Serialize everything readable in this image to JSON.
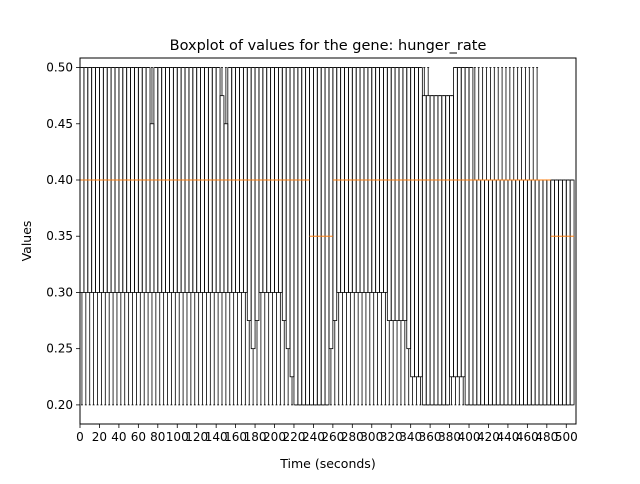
{
  "chart_data": {
    "type": "boxplot",
    "title": "Boxplot of values for the gene: hunger_rate",
    "xlabel": "Time (seconds)",
    "ylabel": "Values",
    "ylim": [
      0.183,
      0.5085
    ],
    "yticks": [
      0.2,
      0.25,
      0.3,
      0.35,
      0.4,
      0.45,
      0.5
    ],
    "ytick_labels": [
      "0.20",
      "0.25",
      "0.30",
      "0.35",
      "0.40",
      "0.45",
      "0.50"
    ],
    "x_range": [
      0,
      510
    ],
    "x_tick_step": 20,
    "box_step": 4,
    "grid": false,
    "colors": {
      "box": "#000000",
      "median": "#ff7f0e",
      "background": "#ffffff"
    },
    "segments": [
      {
        "from": 2,
        "to": 70,
        "min": 0.2,
        "q1": 0.3,
        "median": 0.4,
        "q3": 0.5,
        "max": 0.5
      },
      {
        "from": 74,
        "to": 74,
        "min": 0.2,
        "q1": 0.3,
        "median": 0.4,
        "q3": 0.45,
        "max": 0.5
      },
      {
        "from": 78,
        "to": 142,
        "min": 0.2,
        "q1": 0.3,
        "median": 0.4,
        "q3": 0.5,
        "max": 0.5
      },
      {
        "from": 146,
        "to": 146,
        "min": 0.2,
        "q1": 0.3,
        "median": 0.4,
        "q3": 0.475,
        "max": 0.5
      },
      {
        "from": 150,
        "to": 150,
        "min": 0.2,
        "q1": 0.3,
        "median": 0.4,
        "q3": 0.45,
        "max": 0.5
      },
      {
        "from": 154,
        "to": 170,
        "min": 0.2,
        "q1": 0.3,
        "median": 0.4,
        "q3": 0.5,
        "max": 0.5
      },
      {
        "from": 174,
        "to": 174,
        "min": 0.2,
        "q1": 0.275,
        "median": 0.4,
        "q3": 0.5,
        "max": 0.5
      },
      {
        "from": 178,
        "to": 178,
        "min": 0.2,
        "q1": 0.25,
        "median": 0.4,
        "q3": 0.5,
        "max": 0.5
      },
      {
        "from": 182,
        "to": 182,
        "min": 0.2,
        "q1": 0.275,
        "median": 0.4,
        "q3": 0.5,
        "max": 0.5
      },
      {
        "from": 186,
        "to": 206,
        "min": 0.2,
        "q1": 0.3,
        "median": 0.4,
        "q3": 0.5,
        "max": 0.5
      },
      {
        "from": 210,
        "to": 210,
        "min": 0.2,
        "q1": 0.275,
        "median": 0.4,
        "q3": 0.5,
        "max": 0.5
      },
      {
        "from": 214,
        "to": 214,
        "min": 0.2,
        "q1": 0.25,
        "median": 0.4,
        "q3": 0.5,
        "max": 0.5
      },
      {
        "from": 218,
        "to": 218,
        "min": 0.2,
        "q1": 0.225,
        "median": 0.4,
        "q3": 0.5,
        "max": 0.5
      },
      {
        "from": 222,
        "to": 234,
        "min": 0.2,
        "q1": 0.2,
        "median": 0.4,
        "q3": 0.5,
        "max": 0.5
      },
      {
        "from": 238,
        "to": 250,
        "min": 0.2,
        "q1": 0.2,
        "median": 0.35,
        "q3": 0.5,
        "max": 0.5
      },
      {
        "from": 254,
        "to": 254,
        "min": 0.2,
        "q1": 0.2,
        "median": 0.35,
        "q3": 0.5,
        "max": 0.5
      },
      {
        "from": 258,
        "to": 258,
        "min": 0.2,
        "q1": 0.25,
        "median": 0.35,
        "q3": 0.5,
        "max": 0.5
      },
      {
        "from": 262,
        "to": 262,
        "min": 0.2,
        "q1": 0.275,
        "median": 0.4,
        "q3": 0.5,
        "max": 0.5
      },
      {
        "from": 266,
        "to": 314,
        "min": 0.2,
        "q1": 0.3,
        "median": 0.4,
        "q3": 0.5,
        "max": 0.5
      },
      {
        "from": 318,
        "to": 334,
        "min": 0.2,
        "q1": 0.275,
        "median": 0.4,
        "q3": 0.5,
        "max": 0.5
      },
      {
        "from": 338,
        "to": 338,
        "min": 0.2,
        "q1": 0.25,
        "median": 0.4,
        "q3": 0.5,
        "max": 0.5
      },
      {
        "from": 342,
        "to": 350,
        "min": 0.2,
        "q1": 0.225,
        "median": 0.4,
        "q3": 0.5,
        "max": 0.5
      },
      {
        "from": 354,
        "to": 358,
        "min": 0.2,
        "q1": 0.2,
        "median": 0.4,
        "q3": 0.475,
        "max": 0.5
      },
      {
        "from": 362,
        "to": 378,
        "min": 0.2,
        "q1": 0.2,
        "median": 0.4,
        "q3": 0.475,
        "max": 0.475
      },
      {
        "from": 382,
        "to": 382,
        "min": 0.2,
        "q1": 0.225,
        "median": 0.4,
        "q3": 0.475,
        "max": 0.475
      },
      {
        "from": 386,
        "to": 394,
        "min": 0.2,
        "q1": 0.225,
        "median": 0.4,
        "q3": 0.5,
        "max": 0.5
      },
      {
        "from": 398,
        "to": 402,
        "min": 0.2,
        "q1": 0.2,
        "median": 0.4,
        "q3": 0.5,
        "max": 0.5
      },
      {
        "from": 406,
        "to": 470,
        "min": 0.2,
        "q1": 0.2,
        "median": 0.4,
        "q3": 0.4,
        "max": 0.5
      },
      {
        "from": 474,
        "to": 482,
        "min": 0.2,
        "q1": 0.2,
        "median": 0.4,
        "q3": 0.4,
        "max": 0.4
      },
      {
        "from": 486,
        "to": 506,
        "min": 0.2,
        "q1": 0.2,
        "median": 0.35,
        "q3": 0.4,
        "max": 0.4
      }
    ]
  }
}
